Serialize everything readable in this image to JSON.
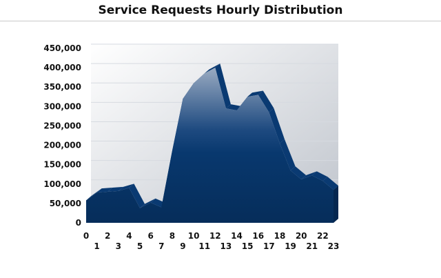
{
  "chart_data": {
    "type": "area",
    "title": "Service Requests Hourly Distribution",
    "xlabel": "",
    "ylabel": "",
    "x": [
      0,
      1,
      2,
      3,
      4,
      5,
      6,
      7,
      8,
      9,
      10,
      11,
      12,
      13,
      14,
      15,
      16,
      17,
      18,
      19,
      20,
      21,
      22,
      23
    ],
    "values": [
      58000,
      78000,
      80000,
      82000,
      90000,
      38000,
      52000,
      40000,
      185000,
      320000,
      360000,
      385000,
      400000,
      295000,
      290000,
      325000,
      330000,
      285000,
      205000,
      135000,
      112000,
      122000,
      108000,
      85000
    ],
    "ylim": [
      0,
      450000
    ],
    "yticks": [
      "0",
      "50,000",
      "100,000",
      "150,000",
      "200,000",
      "250,000",
      "300,000",
      "350,000",
      "400,000",
      "450,000"
    ],
    "xticks": [
      "0",
      "1",
      "2",
      "3",
      "4",
      "5",
      "6",
      "7",
      "8",
      "9",
      "10",
      "11",
      "12",
      "13",
      "14",
      "15",
      "16",
      "17",
      "18",
      "19",
      "20",
      "21",
      "22",
      "23"
    ],
    "grid": true,
    "colors": {
      "area": "#08386e",
      "top": "#0a3a72",
      "wall_light": "#ffffff",
      "wall_dark": "#c4c8cf",
      "grid": "#d6dae0"
    }
  }
}
